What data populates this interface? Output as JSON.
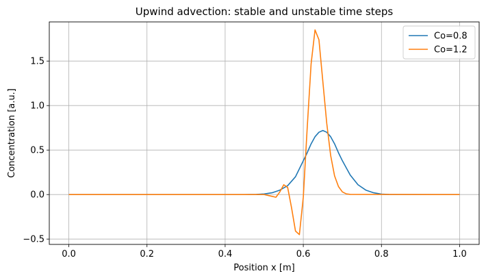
{
  "chart_data": {
    "type": "line",
    "title": "Upwind advection: stable and unstable time steps",
    "xlabel": "Position x [m]",
    "ylabel": "Concentration [a.u.]",
    "xlim": [
      -0.05,
      1.05
    ],
    "ylim": [
      -0.56,
      1.94
    ],
    "xticks": [
      0.0,
      0.2,
      0.4,
      0.6,
      0.8,
      1.0
    ],
    "xtick_labels": [
      "0.0",
      "0.2",
      "0.4",
      "0.6",
      "0.8",
      "1.0"
    ],
    "yticks": [
      -0.5,
      0.0,
      0.5,
      1.0,
      1.5
    ],
    "ytick_labels": [
      "−0.5",
      "0.0",
      "0.5",
      "1.0",
      "1.5"
    ],
    "grid": true,
    "legend_position": "top-right",
    "series": [
      {
        "name": "Co=0.8",
        "color": "#1f77b4",
        "x": [
          0.0,
          0.45,
          0.48,
          0.5,
          0.52,
          0.54,
          0.56,
          0.58,
          0.6,
          0.61,
          0.62,
          0.63,
          0.64,
          0.65,
          0.66,
          0.67,
          0.68,
          0.69,
          0.7,
          0.72,
          0.74,
          0.76,
          0.78,
          0.8,
          0.82,
          1.0
        ],
        "y": [
          0.0,
          0.0,
          0.002,
          0.007,
          0.02,
          0.05,
          0.1,
          0.2,
          0.38,
          0.47,
          0.57,
          0.65,
          0.7,
          0.72,
          0.7,
          0.65,
          0.57,
          0.47,
          0.38,
          0.22,
          0.11,
          0.05,
          0.02,
          0.005,
          0.001,
          0.0
        ]
      },
      {
        "name": "Co=1.2",
        "color": "#ff7f0e",
        "x": [
          0.0,
          0.5,
          0.52,
          0.53,
          0.54,
          0.55,
          0.56,
          0.57,
          0.58,
          0.59,
          0.6,
          0.61,
          0.62,
          0.63,
          0.64,
          0.65,
          0.66,
          0.67,
          0.68,
          0.69,
          0.7,
          0.71,
          0.72,
          1.0
        ],
        "y": [
          0.0,
          0.0,
          -0.02,
          -0.03,
          0.03,
          0.11,
          0.08,
          -0.15,
          -0.41,
          -0.45,
          -0.03,
          0.75,
          1.47,
          1.85,
          1.74,
          1.27,
          0.8,
          0.44,
          0.21,
          0.09,
          0.03,
          0.008,
          0.002,
          0.0
        ]
      }
    ]
  }
}
